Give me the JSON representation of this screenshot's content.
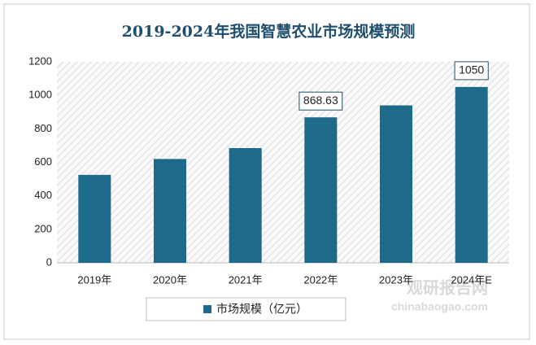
{
  "chart_data": {
    "type": "bar",
    "title": "2019-2024年我国智慧农业市场规模预测",
    "categories": [
      "2019年",
      "2020年",
      "2021年",
      "2022年",
      "2023年",
      "2024年E"
    ],
    "series": [
      {
        "name": "市场规模（亿元）",
        "color": "#1d6a8a",
        "values": [
          525,
          620,
          685,
          868.63,
          940,
          1050
        ],
        "value_labels": [
          null,
          null,
          null,
          "868.63",
          null,
          "1050"
        ]
      }
    ],
    "ylim": [
      0,
      1200
    ],
    "yticks": [
      0,
      200,
      400,
      600,
      800,
      1000,
      1200
    ],
    "grid": false,
    "watermark": {
      "name": "观研报告网",
      "url": "chinabaogao.com"
    }
  }
}
